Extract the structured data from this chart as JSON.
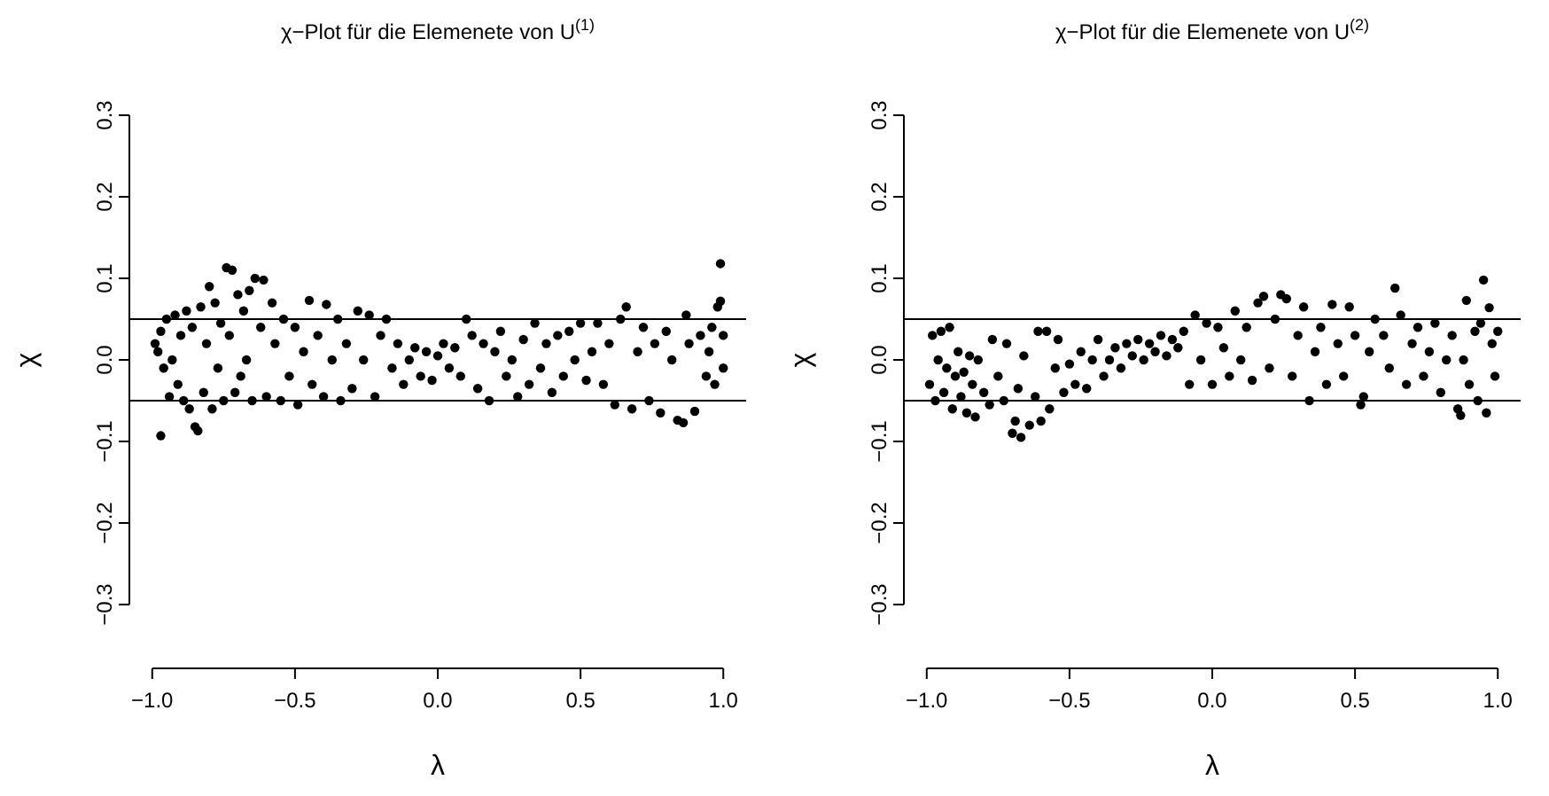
{
  "chart_data": [
    {
      "type": "scatter",
      "title": "χ−Plot für die Elemenete von U$^{(1)}$",
      "xlabel": "λ",
      "ylabel": "χ",
      "color": "#000000",
      "marker": "circle",
      "xlim": [
        -1.08,
        1.08
      ],
      "ylim": [
        -0.3,
        0.3
      ],
      "xticks": [
        {
          "value": -1,
          "label": "−1.0"
        },
        {
          "value": -0.5,
          "label": "−0.5"
        },
        {
          "value": 0,
          "label": "0.0"
        },
        {
          "value": 0.5,
          "label": "0.5"
        },
        {
          "value": 1,
          "label": "1.0"
        }
      ],
      "yticks": [
        {
          "value": -0.3,
          "label": "−0.3"
        },
        {
          "value": -0.2,
          "label": "−0.2"
        },
        {
          "value": -0.1,
          "label": "−0.1"
        },
        {
          "value": 0,
          "label": "0.0"
        },
        {
          "value": 0.1,
          "label": "0.1"
        },
        {
          "value": 0.2,
          "label": "0.2"
        },
        {
          "value": 0.3,
          "label": "0.3"
        }
      ],
      "ref_lines": [
        {
          "axis": "y",
          "value": 0.05,
          "color": "#000000"
        },
        {
          "axis": "y",
          "value": -0.05,
          "color": "#000000"
        }
      ],
      "x": [
        -0.99,
        -0.98,
        -0.97,
        -0.96,
        -0.97,
        -0.95,
        -0.94,
        -0.93,
        -0.92,
        -0.91,
        -0.9,
        -0.89,
        -0.88,
        -0.87,
        -0.86,
        -0.85,
        -0.84,
        -0.83,
        -0.82,
        -0.81,
        -0.8,
        -0.79,
        -0.78,
        -0.77,
        -0.76,
        -0.75,
        -0.74,
        -0.73,
        -0.72,
        -0.71,
        -0.7,
        -0.69,
        -0.68,
        -0.67,
        -0.66,
        -0.65,
        -0.64,
        -0.62,
        -0.61,
        -0.6,
        -0.58,
        -0.57,
        -0.55,
        -0.54,
        -0.52,
        -0.5,
        -0.49,
        -0.47,
        -0.45,
        -0.44,
        -0.42,
        -0.4,
        -0.39,
        -0.37,
        -0.35,
        -0.34,
        -0.32,
        -0.3,
        -0.28,
        -0.26,
        -0.24,
        -0.22,
        -0.2,
        -0.18,
        -0.16,
        -0.14,
        -0.12,
        -0.1,
        -0.08,
        -0.06,
        -0.04,
        -0.02,
        0,
        0.02,
        0.04,
        0.06,
        0.08,
        0.1,
        0.12,
        0.14,
        0.16,
        0.18,
        0.2,
        0.22,
        0.24,
        0.26,
        0.28,
        0.3,
        0.32,
        0.34,
        0.36,
        0.38,
        0.4,
        0.42,
        0.44,
        0.46,
        0.48,
        0.5,
        0.52,
        0.54,
        0.56,
        0.58,
        0.6,
        0.62,
        0.64,
        0.66,
        0.68,
        0.7,
        0.72,
        0.74,
        0.76,
        0.78,
        0.8,
        0.82,
        0.84,
        0.86,
        0.87,
        0.88,
        0.9,
        0.92,
        0.94,
        0.95,
        0.96,
        0.97,
        0.98,
        0.99,
        0.99,
        1.0,
        1.0
      ],
      "values": [
        0.02,
        0.01,
        0.035,
        -0.01,
        -0.093,
        0.05,
        -0.045,
        0,
        0.055,
        -0.03,
        0.03,
        -0.05,
        0.06,
        -0.06,
        0.04,
        -0.082,
        -0.087,
        0.065,
        -0.04,
        0.02,
        0.09,
        -0.06,
        0.07,
        -0.01,
        0.045,
        -0.05,
        0.113,
        0.03,
        0.11,
        -0.04,
        0.08,
        -0.02,
        0.06,
        0,
        0.085,
        -0.05,
        0.1,
        0.04,
        0.098,
        -0.045,
        0.07,
        0.02,
        -0.05,
        0.05,
        -0.02,
        0.04,
        -0.055,
        0.01,
        0.073,
        -0.03,
        0.03,
        -0.045,
        0.068,
        0,
        0.05,
        -0.05,
        0.02,
        -0.035,
        0.06,
        0,
        0.055,
        -0.045,
        0.03,
        0.05,
        -0.01,
        0.02,
        -0.03,
        0,
        0.015,
        -0.02,
        0.01,
        -0.025,
        0.005,
        0.02,
        -0.01,
        0.015,
        -0.02,
        0.05,
        0.03,
        -0.035,
        0.02,
        -0.05,
        0.01,
        0.035,
        -0.02,
        0,
        -0.045,
        0.025,
        -0.03,
        0.045,
        -0.01,
        0.02,
        -0.04,
        0.03,
        -0.02,
        0.035,
        0,
        0.045,
        -0.025,
        0.01,
        0.045,
        -0.03,
        0.02,
        -0.055,
        0.05,
        0.065,
        -0.06,
        0.01,
        0.04,
        -0.05,
        0.02,
        -0.065,
        0.035,
        0,
        -0.074,
        -0.077,
        0.055,
        0.02,
        -0.063,
        0.03,
        -0.02,
        0.01,
        0.04,
        -0.03,
        0.065,
        0.118,
        0.072,
        -0.01,
        0.03
      ]
    },
    {
      "type": "scatter",
      "title": "χ−Plot für die Elemenete von U$^{(2)}$",
      "xlabel": "λ",
      "ylabel": "χ",
      "color": "#000000",
      "marker": "circle",
      "xlim": [
        -1.08,
        1.08
      ],
      "ylim": [
        -0.3,
        0.3
      ],
      "xticks": [
        {
          "value": -1,
          "label": "−1.0"
        },
        {
          "value": -0.5,
          "label": "−0.5"
        },
        {
          "value": 0,
          "label": "0.0"
        },
        {
          "value": 0.5,
          "label": "0.5"
        },
        {
          "value": 1,
          "label": "1.0"
        }
      ],
      "yticks": [
        {
          "value": -0.3,
          "label": "−0.3"
        },
        {
          "value": -0.2,
          "label": "−0.2"
        },
        {
          "value": -0.1,
          "label": "−0.1"
        },
        {
          "value": 0,
          "label": "0.0"
        },
        {
          "value": 0.1,
          "label": "0.1"
        },
        {
          "value": 0.2,
          "label": "0.2"
        },
        {
          "value": 0.3,
          "label": "0.3"
        }
      ],
      "ref_lines": [
        {
          "axis": "y",
          "value": 0.05,
          "color": "#000000"
        },
        {
          "axis": "y",
          "value": -0.05,
          "color": "#000000"
        }
      ],
      "x": [
        -0.99,
        -0.98,
        -0.97,
        -0.96,
        -0.95,
        -0.94,
        -0.93,
        -0.92,
        -0.91,
        -0.9,
        -0.89,
        -0.88,
        -0.87,
        -0.86,
        -0.85,
        -0.84,
        -0.83,
        -0.82,
        -0.8,
        -0.78,
        -0.77,
        -0.75,
        -0.73,
        -0.72,
        -0.7,
        -0.69,
        -0.68,
        -0.67,
        -0.66,
        -0.64,
        -0.62,
        -0.61,
        -0.6,
        -0.58,
        -0.57,
        -0.55,
        -0.54,
        -0.52,
        -0.5,
        -0.48,
        -0.46,
        -0.44,
        -0.42,
        -0.4,
        -0.38,
        -0.36,
        -0.34,
        -0.32,
        -0.3,
        -0.28,
        -0.26,
        -0.24,
        -0.22,
        -0.2,
        -0.18,
        -0.16,
        -0.14,
        -0.12,
        -0.1,
        -0.08,
        -0.06,
        -0.04,
        -0.02,
        0,
        0.02,
        0.04,
        0.06,
        0.08,
        0.1,
        0.12,
        0.14,
        0.16,
        0.18,
        0.2,
        0.22,
        0.24,
        0.26,
        0.28,
        0.3,
        0.32,
        0.34,
        0.36,
        0.38,
        0.4,
        0.42,
        0.44,
        0.46,
        0.48,
        0.5,
        0.52,
        0.53,
        0.55,
        0.57,
        0.6,
        0.62,
        0.64,
        0.66,
        0.68,
        0.7,
        0.72,
        0.74,
        0.76,
        0.78,
        0.8,
        0.82,
        0.84,
        0.86,
        0.87,
        0.88,
        0.89,
        0.9,
        0.92,
        0.93,
        0.94,
        0.95,
        0.96,
        0.97,
        0.98,
        0.99,
        1.0
      ],
      "values": [
        -0.03,
        0.03,
        -0.05,
        0,
        0.035,
        -0.04,
        -0.01,
        0.04,
        -0.06,
        -0.02,
        0.01,
        -0.045,
        -0.015,
        -0.065,
        0.005,
        -0.03,
        -0.07,
        0,
        -0.04,
        -0.055,
        0.025,
        -0.02,
        -0.05,
        0.02,
        -0.09,
        -0.075,
        -0.035,
        -0.095,
        0.005,
        -0.08,
        -0.045,
        0.035,
        -0.075,
        0.035,
        -0.06,
        -0.01,
        0.025,
        -0.04,
        -0.005,
        -0.03,
        0.01,
        -0.035,
        0,
        0.025,
        -0.02,
        0,
        0.015,
        -0.01,
        0.02,
        0.005,
        0.025,
        0,
        0.02,
        0.01,
        0.03,
        0.005,
        0.025,
        0.015,
        0.035,
        -0.03,
        0.055,
        0,
        0.045,
        -0.03,
        0.04,
        0.015,
        -0.02,
        0.06,
        0,
        0.04,
        -0.025,
        0.07,
        0.078,
        -0.01,
        0.05,
        0.08,
        0.075,
        -0.02,
        0.03,
        0.065,
        -0.05,
        0.01,
        0.04,
        -0.03,
        0.068,
        0.02,
        -0.02,
        0.065,
        0.03,
        -0.055,
        -0.045,
        0.01,
        0.05,
        0.03,
        -0.01,
        0.088,
        0.055,
        -0.03,
        0.02,
        0.04,
        -0.02,
        0.01,
        0.045,
        -0.04,
        0,
        0.03,
        -0.06,
        -0.068,
        0,
        0.073,
        -0.03,
        0.035,
        -0.05,
        0.045,
        0.098,
        -0.065,
        0.064,
        0.02,
        -0.02,
        0.035
      ]
    }
  ]
}
